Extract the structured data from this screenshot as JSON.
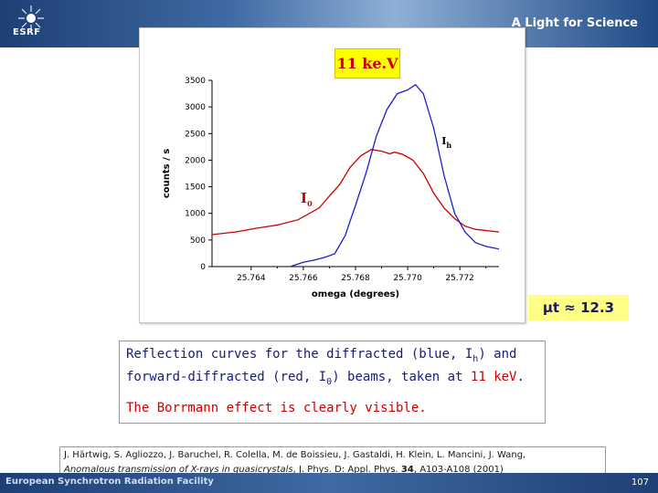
{
  "header": {
    "logo_text": "ESRF",
    "tagline": "A Light for Science"
  },
  "energy_badge": "11 ke.V",
  "mu_t": "μt ≈ 12.3",
  "chart_data": {
    "type": "line",
    "xlabel": "omega (degrees)",
    "ylabel": "counts / s",
    "xlim": [
      25.7625,
      25.7735
    ],
    "ylim": [
      0,
      3500
    ],
    "x_ticks": [
      "25.764",
      "25.766",
      "25.768",
      "25.770",
      "25.772"
    ],
    "x_tick_values": [
      25.764,
      25.766,
      25.768,
      25.77,
      25.772
    ],
    "y_ticks": [
      "0",
      "500",
      "1000",
      "1500",
      "2000",
      "2500",
      "3000",
      "3500"
    ],
    "y_tick_values": [
      0,
      500,
      1000,
      1500,
      2000,
      2500,
      3000,
      3500
    ],
    "grid": false,
    "annotations": [
      {
        "label": "I",
        "sub": "0",
        "color": "#cc0000",
        "x": 25.7659,
        "y": 1200
      },
      {
        "label": "I",
        "sub": "h",
        "color": "#000000",
        "x": 25.7713,
        "y": 2300
      }
    ],
    "series": [
      {
        "name": "I0",
        "color": "#cc0000",
        "x": [
          25.7625,
          25.7634,
          25.7642,
          25.765,
          25.7658,
          25.7666,
          25.7674,
          25.7678,
          25.7682,
          25.7686,
          25.769,
          25.7693,
          25.7695,
          25.7698,
          25.7702,
          25.7706,
          25.771,
          25.7714,
          25.7718,
          25.7722,
          25.7726,
          25.7735
        ],
        "values": [
          600,
          650,
          720,
          780,
          880,
          1100,
          1550,
          1870,
          2080,
          2200,
          2170,
          2120,
          2150,
          2110,
          2000,
          1750,
          1380,
          1100,
          900,
          760,
          700,
          650
        ]
      },
      {
        "name": "Ih",
        "color": "#1e1ecc",
        "x": [
          25.7655,
          25.766,
          25.7664,
          25.7668,
          25.7672,
          25.7676,
          25.768,
          25.7684,
          25.7688,
          25.7692,
          25.7696,
          25.77,
          25.7703,
          25.7706,
          25.771,
          25.7714,
          25.7718,
          25.7722,
          25.7726,
          25.773,
          25.7735
        ],
        "values": [
          0,
          80,
          120,
          170,
          240,
          580,
          1150,
          1750,
          2450,
          2950,
          3250,
          3320,
          3420,
          3250,
          2600,
          1700,
          1000,
          650,
          450,
          380,
          330
        ]
      }
    ]
  },
  "caption": {
    "line1": [
      "Reflection curves for the diffracted (blue, I",
      "h",
      ") and"
    ],
    "line2": [
      "forward-diffracted (red, I",
      "0",
      ") beams, taken at ",
      "11 keV",
      "."
    ],
    "line3": "The Borrmann effect is clearly visible."
  },
  "reference": {
    "authors": "J. Härtwig, S. Agliozzo, J. Baruchel, R. Colella, M. de Boissieu, J. Gastaldi, H. Klein, L. Mancini, J. Wang,",
    "title": "Anomalous transmission of X-rays in quasicrystals",
    "journal": ", J. Phys. D: Appl. Phys. ",
    "volume": "34",
    "pages": ", A103-A108 (2001)"
  },
  "footer": {
    "text": "European Synchrotron Radiation Facility",
    "page": "107"
  }
}
